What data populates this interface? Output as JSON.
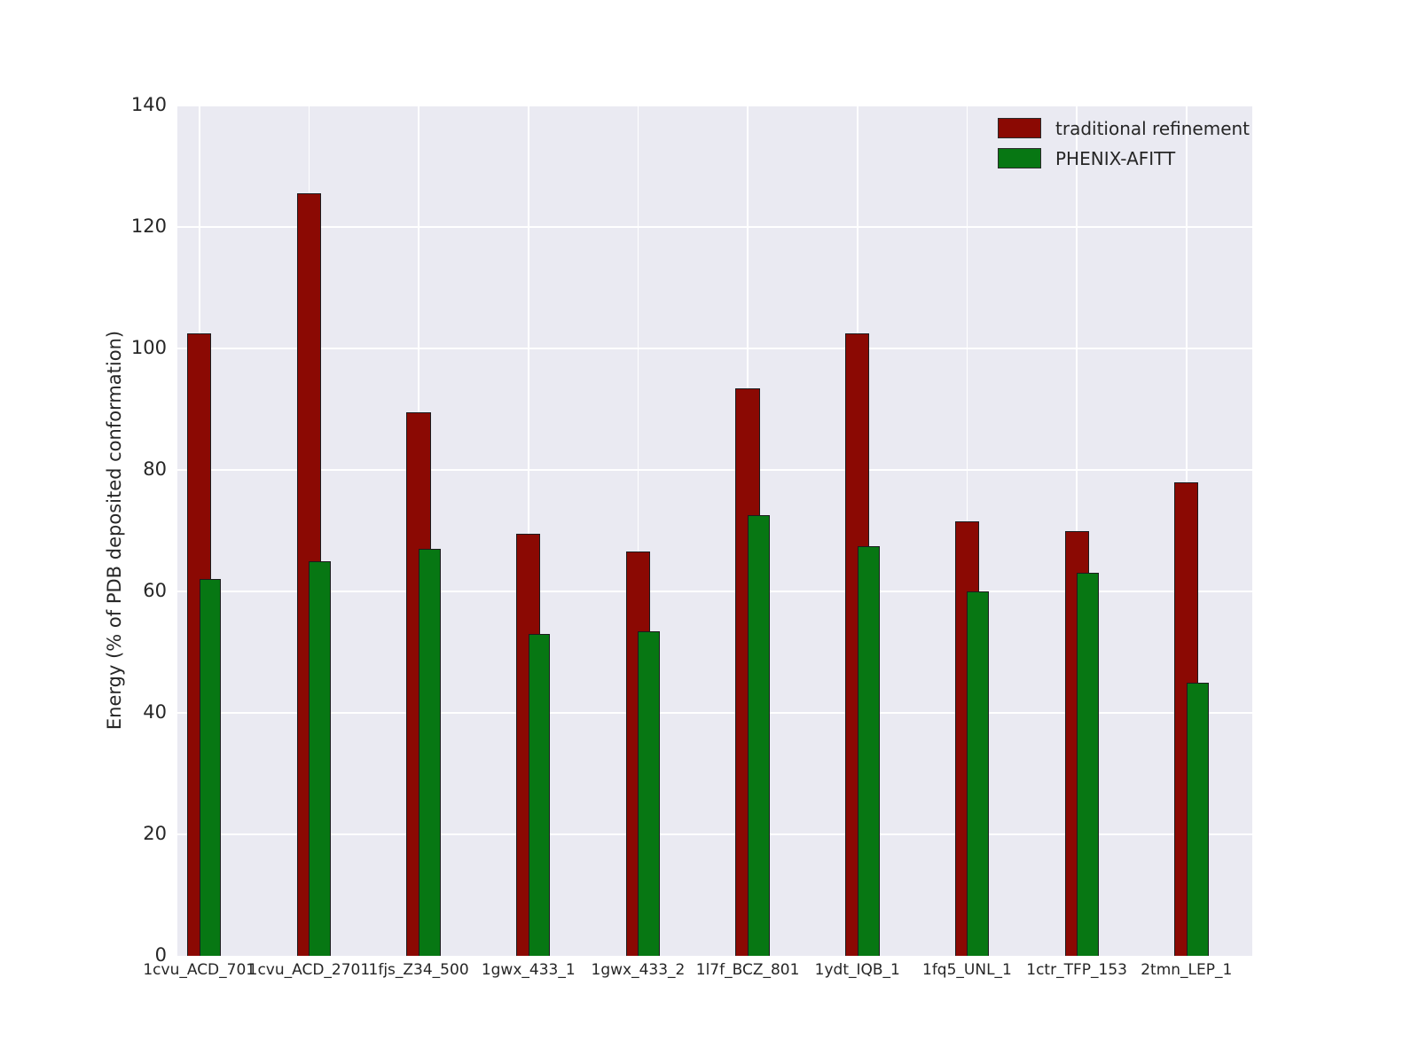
{
  "chart_data": {
    "type": "bar",
    "title": "",
    "xlabel": "",
    "ylabel": "Energy (% of PDB deposited conformation)",
    "categories": [
      "1cvu_ACD_701",
      "1cvu_ACD_2701",
      "1fjs_Z34_500",
      "1gwx_433_1",
      "1gwx_433_2",
      "1l7f_BCZ_801",
      "1ydt_IQB_1",
      "1fq5_UNL_1",
      "1ctr_TFP_153",
      "2tmn_LEP_1"
    ],
    "series": [
      {
        "name": "traditional refinement",
        "color": "#8b0903",
        "values": [
          102.5,
          125.5,
          89.5,
          69.5,
          66.5,
          93.5,
          102.5,
          71.5,
          70,
          78
        ]
      },
      {
        "name": "PHENIX-AFITT",
        "color": "#077713",
        "values": [
          62,
          65,
          67,
          53,
          53.5,
          72.5,
          67.5,
          60,
          63,
          45
        ]
      }
    ],
    "ylim": [
      0,
      140
    ],
    "yticks": [
      0,
      20,
      40,
      60,
      80,
      100,
      120,
      140
    ],
    "grid": true,
    "plot_background": "#eaeaf2",
    "gridline_color": "#ffffff",
    "bar_edge_color": "#1c1c1e",
    "legend_position": "upper right"
  }
}
